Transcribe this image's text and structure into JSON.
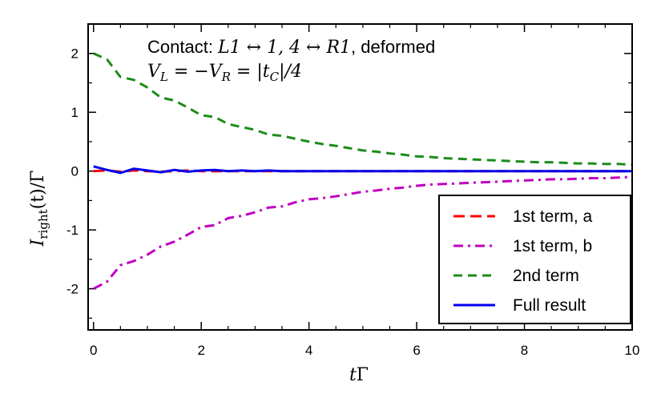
{
  "chart_data": {
    "type": "line",
    "xlabel": "tΓ",
    "ylabel": "I_right(t)/Γ",
    "xlim": [
      -0.1,
      10
    ],
    "ylim": [
      -2.7,
      2.5
    ],
    "x_ticks": [
      0,
      2,
      4,
      6,
      8,
      10
    ],
    "x_tick_labels": [
      "0",
      "2",
      "4",
      "6",
      "8",
      "10"
    ],
    "y_ticks": [
      -2,
      -1,
      0,
      1,
      2
    ],
    "y_tick_labels": [
      "-2",
      "-1",
      "0",
      "1",
      "2"
    ],
    "grid": false,
    "legend_position": "bottom-right",
    "annotations": [
      "Contact: L1 ↔ 1, 4 ↔ R1, deformed",
      "V_L = −V_R = |t_C|/4"
    ],
    "x": [
      0,
      0.25,
      0.5,
      0.75,
      1,
      1.25,
      1.5,
      1.75,
      2,
      2.25,
      2.5,
      2.75,
      3,
      3.25,
      3.5,
      3.75,
      4,
      4.25,
      4.5,
      4.75,
      5,
      5.25,
      5.5,
      5.75,
      6,
      6.25,
      6.5,
      6.75,
      7,
      7.25,
      7.5,
      7.75,
      8,
      8.25,
      8.5,
      8.75,
      9,
      9.25,
      9.5,
      9.75,
      10
    ],
    "series": [
      {
        "name": "1st term, a",
        "color": "#ff0000",
        "dash": "long-dash",
        "values": [
          0,
          0.01,
          -0.01,
          0.01,
          0,
          -0.01,
          0,
          0.01,
          0,
          0,
          0,
          0,
          0,
          0,
          0,
          0,
          0,
          0,
          0,
          0,
          0,
          0,
          0,
          0,
          0,
          0,
          0,
          0,
          0,
          0,
          0,
          0,
          0,
          0,
          0,
          0,
          0,
          0,
          0,
          0,
          0
        ]
      },
      {
        "name": "1st term, b",
        "color": "#c000c0",
        "dash": "dash-dot",
        "values": [
          -2.0,
          -1.88,
          -1.6,
          -1.53,
          -1.42,
          -1.28,
          -1.2,
          -1.08,
          -0.95,
          -0.92,
          -0.8,
          -0.76,
          -0.7,
          -0.62,
          -0.6,
          -0.53,
          -0.48,
          -0.46,
          -0.43,
          -0.39,
          -0.35,
          -0.33,
          -0.3,
          -0.28,
          -0.25,
          -0.23,
          -0.22,
          -0.21,
          -0.2,
          -0.19,
          -0.18,
          -0.17,
          -0.16,
          -0.15,
          -0.14,
          -0.14,
          -0.13,
          -0.12,
          -0.12,
          -0.11,
          -0.1
        ]
      },
      {
        "name": "2nd term",
        "color": "#1a8c1a",
        "dash": "dash",
        "values": [
          2.0,
          1.9,
          1.6,
          1.55,
          1.42,
          1.25,
          1.2,
          1.08,
          0.95,
          0.92,
          0.8,
          0.75,
          0.7,
          0.62,
          0.6,
          0.55,
          0.5,
          0.46,
          0.43,
          0.39,
          0.35,
          0.33,
          0.3,
          0.28,
          0.25,
          0.24,
          0.22,
          0.21,
          0.2,
          0.19,
          0.18,
          0.17,
          0.16,
          0.15,
          0.15,
          0.14,
          0.13,
          0.13,
          0.12,
          0.12,
          0.11
        ]
      },
      {
        "name": "Full result",
        "color": "#0000ee",
        "dash": "solid",
        "values": [
          0.08,
          0.02,
          -0.03,
          0.04,
          0.01,
          -0.02,
          0.02,
          -0.01,
          0.01,
          0.02,
          0,
          0.01,
          0,
          0.01,
          0,
          0,
          0,
          0,
          0,
          0,
          0,
          0,
          0,
          0,
          0,
          0,
          0,
          0,
          0,
          0,
          0,
          0,
          0,
          0,
          0,
          0,
          0,
          0,
          0,
          0,
          0
        ]
      }
    ]
  }
}
